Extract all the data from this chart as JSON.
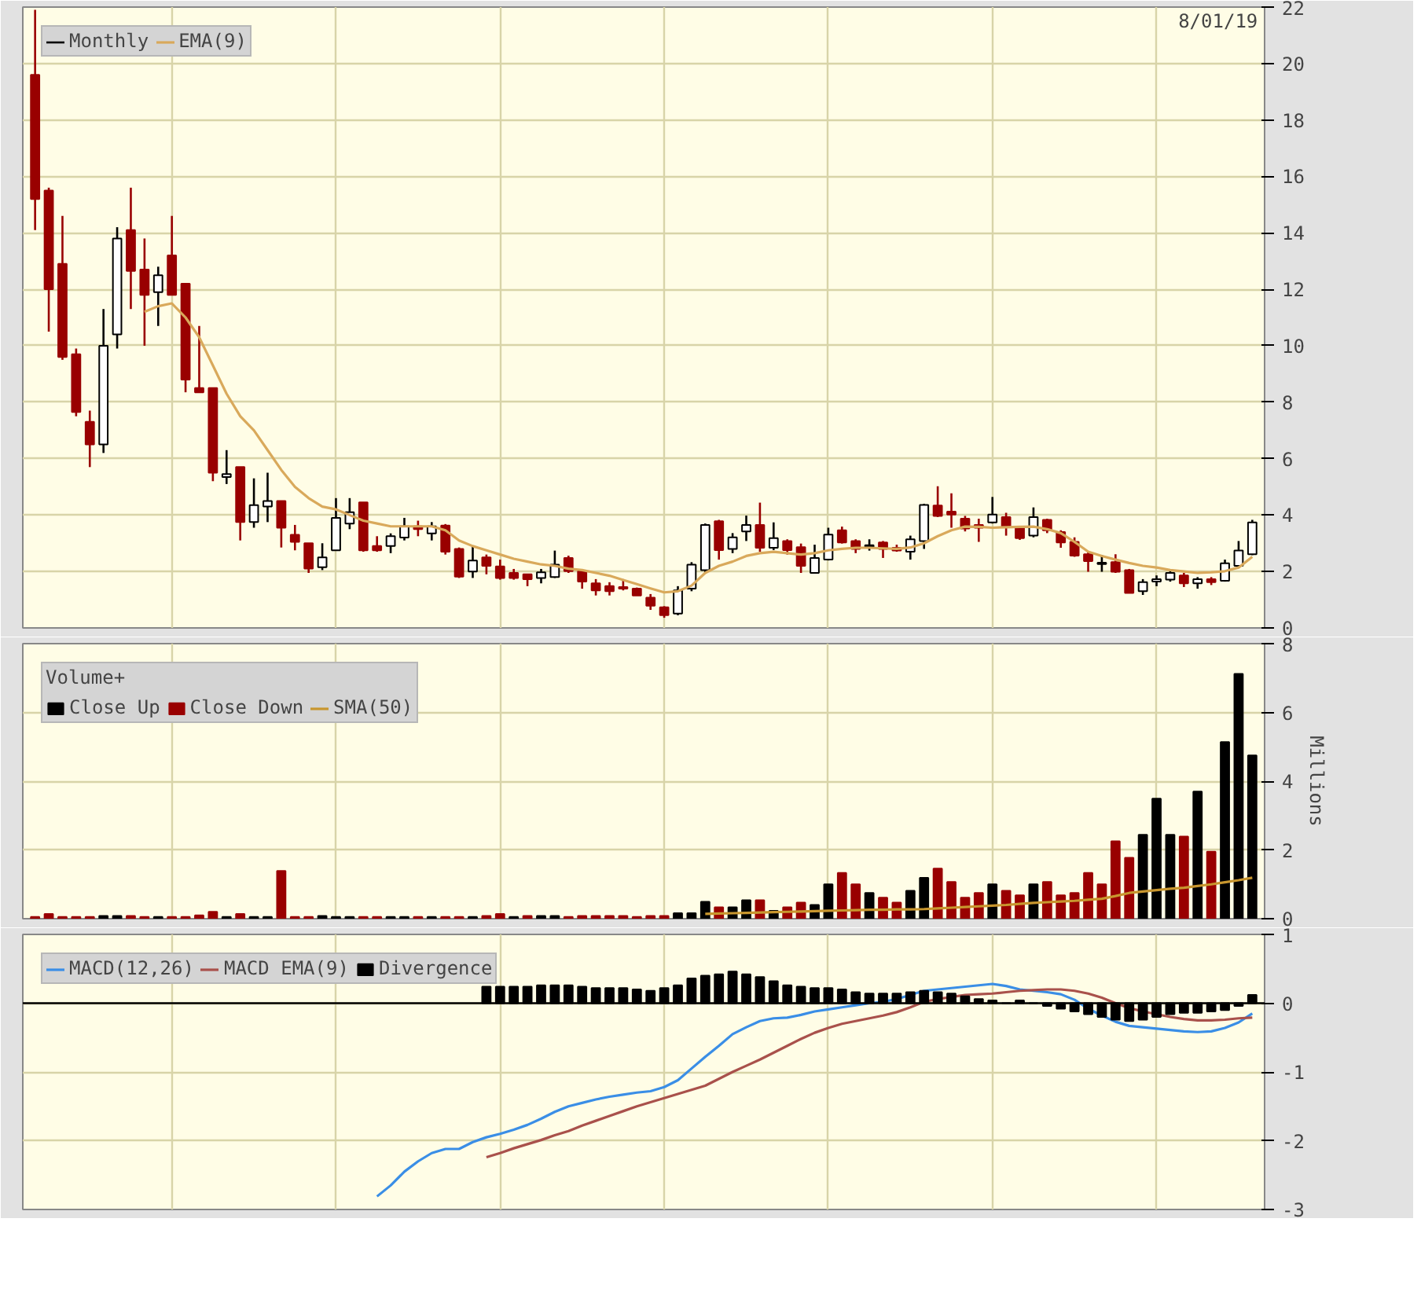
{
  "chart_data": [
    {
      "type": "candlestick",
      "categories": [
        null,
        null,
        null,
        null,
        null,
        null,
        null,
        null,
        null,
        null,
        null,
        null,
        null,
        null,
        null,
        null,
        null,
        null,
        null,
        null,
        null,
        null,
        null,
        null,
        null,
        null,
        null,
        null,
        null,
        null,
        null,
        null,
        null,
        null,
        null,
        null,
        null,
        null,
        null,
        null,
        null,
        null,
        null,
        null,
        null,
        null,
        null,
        null,
        null,
        null,
        null,
        null,
        null,
        null,
        null,
        null,
        null,
        null,
        null,
        null,
        null,
        null,
        null,
        null,
        null,
        null,
        null,
        null,
        null,
        null,
        null,
        null,
        null,
        null,
        null,
        null,
        null,
        null,
        null,
        null,
        null,
        null,
        null,
        null,
        null,
        null,
        null,
        null,
        null,
        null
      ],
      "series": [
        {
          "name": "Monthly",
          "color": "#000000",
          "colors": [
            "#990000",
            "#990000",
            "#990000",
            "#990000",
            "#990000",
            "#ffffff",
            "#ffffff",
            "#990000",
            "#990000",
            "#ffffff",
            "#990000",
            "#990000",
            "#990000",
            "#990000",
            "#ffffff",
            "#990000",
            "#ffffff",
            "#ffffff",
            "#990000",
            "#990000",
            "#990000",
            "#ffffff",
            "#ffffff",
            "#ffffff",
            "#990000",
            "#990000",
            "#ffffff",
            "#ffffff",
            "#990000",
            "#ffffff",
            "#990000",
            "#990000",
            "#ffffff",
            "#990000",
            "#990000",
            "#990000",
            "#990000",
            "#ffffff",
            "#ffffff",
            "#990000",
            "#990000",
            "#990000",
            "#990000",
            "#990000",
            "#990000",
            "#990000",
            "#990000",
            "#ffffff",
            "#ffffff",
            "#ffffff",
            "#990000",
            "#ffffff",
            "#ffffff",
            "#990000",
            "#ffffff",
            "#990000",
            "#990000",
            "#ffffff",
            "#ffffff",
            "#990000",
            "#990000",
            "#ffffff",
            "#990000",
            "#990000",
            "#ffffff",
            "#ffffff",
            "#990000",
            "#990000",
            "#990000",
            "#990000",
            "#ffffff",
            "#990000",
            "#990000",
            "#ffffff",
            "#990000",
            "#990000",
            "#990000",
            "#990000",
            "#ffffff",
            "#990000",
            "#990000",
            "#ffffff",
            "#ffffff",
            "#ffffff",
            "#990000",
            "#ffffff",
            "#990000",
            "#ffffff",
            "#ffffff",
            "#ffffff"
          ],
          "ohlc": [
            [
              19.6,
              21.9,
              14.1,
              15.2
            ],
            [
              15.5,
              15.6,
              10.5,
              12.0
            ],
            [
              12.9,
              14.6,
              9.5,
              9.6
            ],
            [
              9.7,
              9.9,
              7.5,
              7.65
            ],
            [
              7.3,
              7.7,
              5.7,
              6.5
            ],
            [
              6.5,
              11.3,
              6.2,
              10.0
            ],
            [
              10.4,
              14.2,
              9.9,
              13.8
            ],
            [
              14.1,
              15.6,
              11.3,
              12.65
            ],
            [
              12.7,
              13.8,
              10.0,
              11.8
            ],
            [
              11.9,
              12.8,
              10.7,
              12.5
            ],
            [
              13.2,
              14.6,
              11.8,
              11.8
            ],
            [
              12.2,
              12.2,
              8.35,
              8.8
            ],
            [
              8.5,
              10.7,
              8.35,
              8.35
            ],
            [
              8.5,
              8.5,
              5.2,
              5.5
            ],
            [
              5.35,
              6.3,
              5.1,
              5.45
            ],
            [
              5.7,
              5.7,
              3.1,
              3.75
            ],
            [
              3.75,
              5.3,
              3.55,
              4.35
            ],
            [
              4.3,
              5.5,
              3.75,
              4.5
            ],
            [
              4.5,
              4.5,
              2.85,
              3.55
            ],
            [
              3.3,
              3.65,
              2.75,
              3.05
            ],
            [
              3.0,
              3.0,
              1.95,
              2.1
            ],
            [
              2.15,
              3.0,
              2.05,
              2.5
            ],
            [
              2.75,
              4.6,
              2.75,
              3.9
            ],
            [
              3.7,
              4.6,
              3.5,
              4.1
            ],
            [
              4.45,
              4.45,
              2.7,
              2.75
            ],
            [
              2.9,
              3.25,
              2.7,
              2.75
            ],
            [
              2.9,
              3.35,
              2.65,
              3.25
            ],
            [
              3.2,
              3.9,
              3.1,
              3.6
            ],
            [
              3.6,
              3.8,
              3.25,
              3.5
            ],
            [
              3.35,
              3.75,
              3.1,
              3.6
            ],
            [
              3.63,
              3.68,
              2.6,
              2.7
            ],
            [
              2.8,
              2.85,
              1.77,
              1.82
            ],
            [
              2.0,
              2.9,
              1.77,
              2.39
            ],
            [
              2.5,
              2.6,
              1.9,
              2.2
            ],
            [
              2.18,
              2.42,
              1.71,
              1.77
            ],
            [
              1.95,
              2.09,
              1.71,
              1.77
            ],
            [
              1.9,
              1.92,
              1.48,
              1.73
            ],
            [
              1.77,
              2.09,
              1.58,
              1.97
            ],
            [
              1.8,
              2.74,
              1.77,
              2.24
            ],
            [
              2.48,
              2.56,
              1.95,
              2.01
            ],
            [
              2.01,
              2.05,
              1.39,
              1.64
            ],
            [
              1.58,
              1.73,
              1.15,
              1.33
            ],
            [
              1.48,
              1.62,
              1.15,
              1.3
            ],
            [
              1.45,
              1.73,
              1.33,
              1.39
            ],
            [
              1.39,
              1.43,
              1.15,
              1.15
            ],
            [
              1.07,
              1.2,
              0.64,
              0.79
            ],
            [
              0.73,
              0.77,
              0.36,
              0.45
            ],
            [
              0.51,
              1.48,
              0.45,
              1.33
            ],
            [
              1.39,
              2.33,
              1.3,
              2.24
            ],
            [
              2.05,
              3.7,
              1.95,
              3.65
            ],
            [
              3.78,
              3.83,
              2.42,
              2.76
            ],
            [
              2.8,
              3.36,
              2.65,
              3.21
            ],
            [
              3.42,
              3.98,
              3.08,
              3.65
            ],
            [
              3.65,
              4.44,
              2.7,
              2.84
            ],
            [
              2.84,
              3.74,
              2.76,
              3.18
            ],
            [
              3.08,
              3.14,
              2.6,
              2.76
            ],
            [
              2.86,
              2.99,
              1.95,
              2.2
            ],
            [
              1.95,
              2.95,
              1.95,
              2.48
            ],
            [
              2.42,
              3.55,
              2.39,
              3.31
            ],
            [
              3.46,
              3.59,
              2.99,
              3.03
            ],
            [
              3.08,
              3.14,
              2.65,
              2.8
            ],
            [
              2.88,
              3.14,
              2.74,
              2.93
            ],
            [
              3.03,
              3.08,
              2.48,
              2.8
            ],
            [
              2.84,
              2.95,
              2.7,
              2.74
            ],
            [
              2.7,
              3.27,
              2.42,
              3.14
            ],
            [
              3.08,
              4.4,
              2.8,
              4.36
            ],
            [
              4.34,
              5.02,
              3.93,
              3.97
            ],
            [
              4.12,
              4.77,
              3.55,
              4.02
            ],
            [
              3.87,
              3.97,
              3.42,
              3.52
            ],
            [
              3.65,
              3.87,
              3.05,
              3.55
            ],
            [
              3.74,
              4.64,
              3.7,
              4.02
            ],
            [
              3.93,
              4.08,
              3.27,
              3.59
            ],
            [
              3.55,
              3.59,
              3.12,
              3.18
            ],
            [
              3.27,
              4.27,
              3.21,
              3.93
            ],
            [
              3.83,
              3.87,
              3.36,
              3.46
            ],
            [
              3.4,
              3.46,
              2.84,
              3.03
            ],
            [
              3.05,
              3.21,
              2.52,
              2.56
            ],
            [
              2.61,
              2.7,
              1.99,
              2.37
            ],
            [
              2.26,
              2.58,
              1.99,
              2.31
            ],
            [
              2.33,
              2.61,
              1.95,
              1.99
            ],
            [
              2.05,
              2.09,
              1.24,
              1.24
            ],
            [
              1.3,
              1.73,
              1.17,
              1.62
            ],
            [
              1.64,
              1.86,
              1.48,
              1.73
            ],
            [
              1.71,
              2.05,
              1.64,
              1.95
            ],
            [
              1.86,
              1.95,
              1.45,
              1.58
            ],
            [
              1.58,
              1.8,
              1.39,
              1.73
            ],
            [
              1.73,
              1.8,
              1.52,
              1.62
            ],
            [
              1.67,
              2.42,
              1.64,
              2.29
            ],
            [
              2.2,
              3.08,
              2.14,
              2.74
            ],
            [
              2.61,
              3.83,
              2.58,
              3.74
            ]
          ]
        },
        {
          "name": "EMA(9)",
          "type": "line",
          "color": "#d9a95b",
          "values": [
            null,
            null,
            null,
            null,
            null,
            null,
            null,
            null,
            11.2,
            11.4,
            11.5,
            11.0,
            10.3,
            9.3,
            8.3,
            7.5,
            7.0,
            6.3,
            5.6,
            5.0,
            4.6,
            4.3,
            4.2,
            4.0,
            3.8,
            3.7,
            3.6,
            3.6,
            3.6,
            3.6,
            3.46,
            3.1,
            2.9,
            2.75,
            2.6,
            2.45,
            2.35,
            2.25,
            2.2,
            2.1,
            2.05,
            1.95,
            1.85,
            1.7,
            1.55,
            1.4,
            1.26,
            1.3,
            1.5,
            1.95,
            2.2,
            2.35,
            2.55,
            2.65,
            2.7,
            2.65,
            2.6,
            2.65,
            2.75,
            2.8,
            2.84,
            2.84,
            2.82,
            2.8,
            2.85,
            3.0,
            3.25,
            3.46,
            3.59,
            3.58,
            3.55,
            3.57,
            3.58,
            3.59,
            3.5,
            3.36,
            3.05,
            2.7,
            2.55,
            2.42,
            2.3,
            2.2,
            2.14,
            2.05,
            2.0,
            1.95,
            1.97,
            2.01,
            2.14,
            2.52
          ]
        }
      ],
      "ylim": [
        0,
        22
      ],
      "yticks": [
        0,
        2,
        4,
        6,
        8,
        10,
        12,
        14,
        16,
        18,
        20,
        22
      ],
      "grid": true,
      "legend": "top left",
      "tick_labels": "y",
      "annotations": [
        "8/01/19"
      ]
    },
    {
      "type": "bar",
      "title": "Volume+",
      "ylabel": "Millions",
      "categories": [
        null,
        null,
        null,
        null,
        null,
        null,
        null,
        null,
        null,
        null,
        null,
        null,
        null,
        null,
        null,
        null,
        null,
        null,
        null,
        null,
        null,
        null,
        null,
        null,
        null,
        null,
        null,
        null,
        null,
        null,
        null,
        null,
        null,
        null,
        null,
        null,
        null,
        null,
        null,
        null,
        null,
        null,
        null,
        null,
        null,
        null,
        null,
        null,
        null,
        null,
        null,
        null,
        null,
        null,
        null,
        null,
        null,
        null,
        null,
        null,
        null,
        null,
        null,
        null,
        null,
        null,
        null,
        null,
        null,
        null,
        null,
        null,
        null,
        null,
        null,
        null,
        null,
        null,
        null,
        null,
        null,
        null,
        null,
        null,
        null,
        null,
        null,
        null,
        null,
        null
      ],
      "series": [
        {
          "name": "Close Up",
          "color": "#000000",
          "values": [
            null,
            null,
            null,
            null,
            null,
            0.08,
            0.08,
            null,
            null,
            0.05,
            null,
            null,
            null,
            null,
            0.05,
            null,
            0.05,
            0.05,
            null,
            null,
            null,
            0.08,
            0.05,
            0.05,
            null,
            null,
            0.05,
            0.05,
            null,
            0.05,
            null,
            null,
            0.05,
            null,
            null,
            0.05,
            null,
            0.08,
            0.08,
            null,
            null,
            null,
            null,
            null,
            null,
            null,
            null,
            0.16,
            0.16,
            0.49,
            null,
            0.33,
            0.54,
            null,
            0.23,
            null,
            null,
            0.4,
            1.0,
            null,
            null,
            0.75,
            null,
            null,
            0.81,
            1.19,
            null,
            null,
            null,
            null,
            1.0,
            null,
            null,
            1.0,
            null,
            null,
            null,
            null,
            null,
            null,
            null,
            2.44,
            3.49,
            2.44,
            null,
            3.7,
            null,
            5.14,
            7.12,
            4.75
          ]
        },
        {
          "name": "Close Down",
          "color": "#990000",
          "values": [
            0.05,
            0.14,
            0.05,
            0.05,
            0.05,
            null,
            null,
            0.08,
            0.05,
            null,
            0.05,
            0.05,
            0.1,
            0.2,
            null,
            0.14,
            null,
            null,
            1.39,
            0.05,
            0.05,
            null,
            null,
            null,
            0.05,
            0.05,
            null,
            null,
            0.05,
            null,
            0.05,
            0.05,
            null,
            0.08,
            0.14,
            null,
            0.08,
            null,
            null,
            0.05,
            0.08,
            0.08,
            0.08,
            0.08,
            0.05,
            0.08,
            0.08,
            null,
            null,
            null,
            0.33,
            null,
            null,
            0.54,
            null,
            0.33,
            0.47,
            null,
            null,
            1.33,
            1.0,
            null,
            0.61,
            0.47,
            null,
            null,
            1.46,
            1.07,
            0.61,
            0.75,
            null,
            0.81,
            0.68,
            null,
            1.07,
            0.68,
            0.75,
            1.33,
            1.0,
            2.25,
            1.77,
            null,
            null,
            null,
            2.39,
            null,
            1.95,
            null,
            null,
            null
          ]
        },
        {
          "name": "SMA(50)",
          "type": "line",
          "color": "#c8962e",
          "values": [
            null,
            null,
            null,
            null,
            null,
            null,
            null,
            null,
            null,
            null,
            null,
            null,
            null,
            null,
            null,
            null,
            null,
            null,
            null,
            null,
            null,
            null,
            null,
            null,
            null,
            null,
            null,
            null,
            null,
            null,
            null,
            null,
            null,
            null,
            null,
            null,
            null,
            null,
            null,
            null,
            null,
            null,
            null,
            null,
            null,
            null,
            null,
            null,
            null,
            0.14,
            0.15,
            0.16,
            0.17,
            0.18,
            0.19,
            0.2,
            0.21,
            0.22,
            0.23,
            0.24,
            0.25,
            0.26,
            0.26,
            0.27,
            0.27,
            0.28,
            0.3,
            0.32,
            0.34,
            0.36,
            0.38,
            0.4,
            0.43,
            0.46,
            0.48,
            0.5,
            0.52,
            0.55,
            0.58,
            0.66,
            0.75,
            0.79,
            0.83,
            0.87,
            0.9,
            0.95,
            1.0,
            1.06,
            1.12,
            1.19
          ]
        }
      ],
      "ylim": [
        0,
        8
      ],
      "yticks": [
        0,
        2,
        4,
        6,
        8
      ],
      "grid": true,
      "legend": "top left",
      "tick_labels": "y"
    },
    {
      "type": "line",
      "categories": [
        null,
        null,
        null,
        null,
        null,
        null,
        null,
        null,
        null,
        null,
        null,
        null,
        null,
        null,
        null,
        null,
        null,
        null,
        null,
        null,
        null,
        null,
        null,
        null,
        null,
        null,
        null,
        null,
        null,
        null,
        null,
        null,
        null,
        null,
        null,
        null,
        null,
        null,
        null,
        null,
        null,
        null,
        null,
        null,
        null,
        null,
        null,
        null,
        null,
        null,
        null,
        null,
        null,
        null,
        null,
        null,
        null,
        null,
        null,
        null,
        null,
        null,
        null,
        null,
        null,
        null,
        null,
        null,
        null,
        null,
        null,
        null,
        null,
        null,
        null,
        null,
        null,
        null,
        null,
        null,
        null,
        null,
        null,
        null,
        null,
        null,
        null,
        null,
        null,
        null
      ],
      "series": [
        {
          "name": "MACD(12,26)",
          "color": "#3a8ee6",
          "values": [
            null,
            null,
            null,
            null,
            null,
            null,
            null,
            null,
            null,
            null,
            null,
            null,
            null,
            null,
            null,
            null,
            null,
            null,
            null,
            null,
            null,
            null,
            null,
            null,
            null,
            -2.81,
            -2.65,
            -2.45,
            -2.3,
            -2.18,
            -2.12,
            -2.12,
            -2.02,
            -1.95,
            -1.9,
            -1.84,
            -1.77,
            -1.68,
            -1.58,
            -1.5,
            -1.45,
            -1.4,
            -1.36,
            -1.33,
            -1.3,
            -1.28,
            -1.22,
            -1.12,
            -0.95,
            -0.78,
            -0.62,
            -0.45,
            -0.35,
            -0.26,
            -0.22,
            -0.21,
            -0.17,
            -0.12,
            -0.09,
            -0.06,
            -0.03,
            0.0,
            0.02,
            0.06,
            0.12,
            0.18,
            0.2,
            0.22,
            0.24,
            0.26,
            0.28,
            0.25,
            0.2,
            0.18,
            0.16,
            0.13,
            0.05,
            -0.08,
            -0.18,
            -0.27,
            -0.33,
            -0.35,
            -0.37,
            -0.39,
            -0.41,
            -0.42,
            -0.41,
            -0.36,
            -0.28,
            -0.15
          ]
        },
        {
          "name": "MACD EMA(9)",
          "color": "#a9514b",
          "values": [
            null,
            null,
            null,
            null,
            null,
            null,
            null,
            null,
            null,
            null,
            null,
            null,
            null,
            null,
            null,
            null,
            null,
            null,
            null,
            null,
            null,
            null,
            null,
            null,
            null,
            null,
            null,
            null,
            null,
            null,
            null,
            null,
            null,
            -2.24,
            -2.18,
            -2.11,
            -2.05,
            -1.99,
            -1.92,
            -1.86,
            -1.78,
            -1.71,
            -1.64,
            -1.57,
            -1.5,
            -1.44,
            -1.38,
            -1.32,
            -1.26,
            -1.2,
            -1.1,
            -1.0,
            -0.91,
            -0.82,
            -0.72,
            -0.62,
            -0.52,
            -0.43,
            -0.36,
            -0.3,
            -0.26,
            -0.22,
            -0.18,
            -0.13,
            -0.06,
            0.02,
            0.06,
            0.09,
            0.12,
            0.13,
            0.14,
            0.16,
            0.18,
            0.19,
            0.2,
            0.2,
            0.18,
            0.14,
            0.08,
            0.0,
            -0.07,
            -0.12,
            -0.16,
            -0.2,
            -0.23,
            -0.25,
            -0.25,
            -0.24,
            -0.22,
            -0.21
          ]
        },
        {
          "name": "Divergence",
          "type": "bar",
          "color": "#000000",
          "values": [
            null,
            null,
            null,
            null,
            null,
            null,
            null,
            null,
            null,
            null,
            null,
            null,
            null,
            null,
            null,
            null,
            null,
            null,
            null,
            null,
            null,
            null,
            null,
            null,
            null,
            null,
            null,
            null,
            null,
            null,
            null,
            null,
            null,
            0.24,
            0.24,
            0.24,
            0.24,
            0.26,
            0.26,
            0.26,
            0.24,
            0.22,
            0.22,
            0.22,
            0.2,
            0.18,
            0.22,
            0.26,
            0.36,
            0.4,
            0.42,
            0.46,
            0.42,
            0.38,
            0.32,
            0.26,
            0.24,
            0.22,
            0.22,
            0.2,
            0.16,
            0.14,
            0.14,
            0.14,
            0.16,
            0.18,
            0.16,
            0.14,
            0.1,
            0.06,
            0.04,
            0,
            0.04,
            0,
            -0.04,
            -0.08,
            -0.12,
            -0.16,
            -0.2,
            -0.24,
            -0.26,
            -0.24,
            -0.2,
            -0.16,
            -0.14,
            -0.14,
            -0.12,
            -0.1,
            -0.04,
            0.12
          ]
        }
      ],
      "ylim": [
        -3,
        1
      ],
      "yticks": [
        -3,
        -2,
        -1,
        0,
        1
      ],
      "grid": true,
      "legend": "top left",
      "tick_labels": "y",
      "ref_lines": [
        {
          "axis": "y",
          "value": 0,
          "color": "#000000"
        }
      ]
    }
  ]
}
